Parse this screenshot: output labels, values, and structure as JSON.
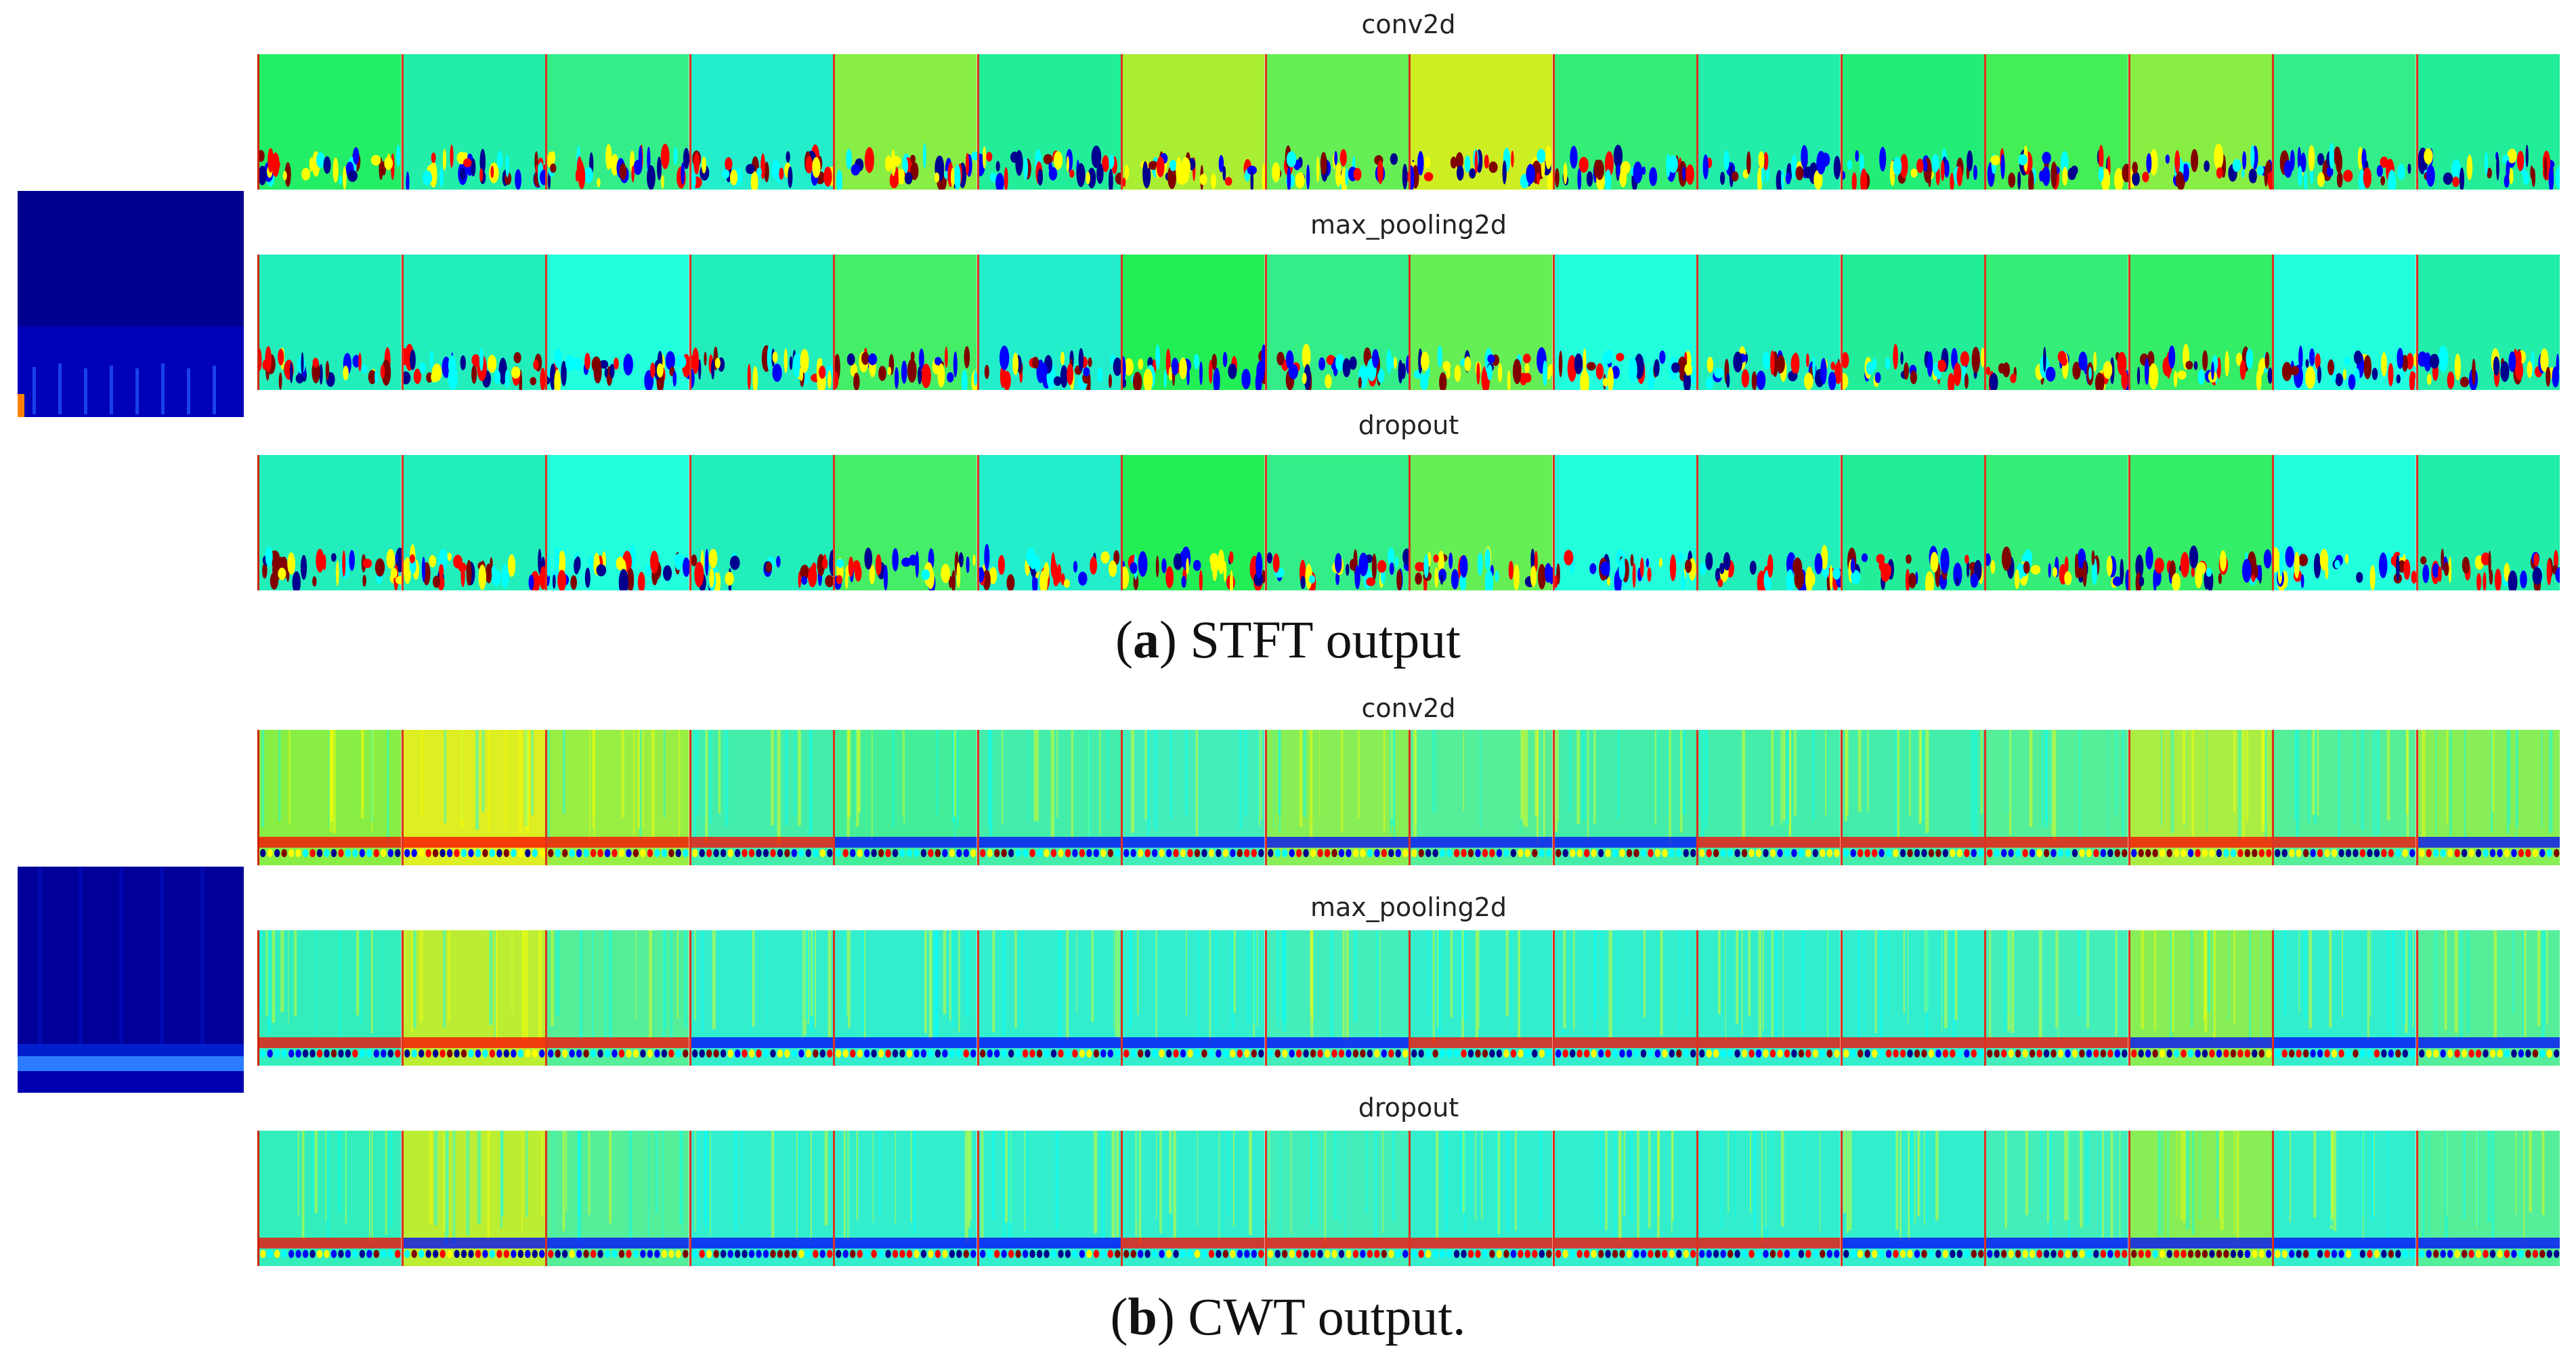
{
  "colors": {
    "jet_dark": "#00008f",
    "jet_blue": "#0000ff",
    "jet_cyan": "#00ffff",
    "jet_green": "#00ff80",
    "jet_yellow": "#ffff00",
    "jet_red": "#ff0000",
    "jet_darkred": "#800000"
  },
  "panel_a": {
    "caption_letter": "a",
    "caption_text": "STFT output",
    "layers": [
      {
        "name": "conv2d",
        "tiles": [
          "#22ee66",
          "#22eeaa",
          "#33ee88",
          "#22eecc",
          "#88ee44",
          "#22ee99",
          "#aaee33",
          "#66ee55",
          "#ccee22",
          "#33ee77",
          "#22eeaa",
          "#22ee77",
          "#44ee55",
          "#88ee44",
          "#33ee88",
          "#22ee99"
        ]
      },
      {
        "name": "max_pooling2d",
        "tiles": [
          "#22eebb",
          "#22eebb",
          "#22ffdd",
          "#22eebb",
          "#44ee66",
          "#22eecc",
          "#22ee55",
          "#33ee88",
          "#66ee55",
          "#22ffdd",
          "#22eebb",
          "#22ee99",
          "#33ee77",
          "#33ee66",
          "#22ffdd",
          "#22eeaa"
        ]
      },
      {
        "name": "dropout",
        "tiles": [
          "#22eebb",
          "#22eebb",
          "#22ffdd",
          "#22eebb",
          "#44ee66",
          "#22eecc",
          "#22ee55",
          "#33ee88",
          "#66ee55",
          "#22ffdd",
          "#22eebb",
          "#22ee99",
          "#33ee77",
          "#33ee66",
          "#22ffdd",
          "#22eeaa"
        ]
      }
    ]
  },
  "panel_b": {
    "caption_letter": "b",
    "caption_text": "CWT output.",
    "layers": [
      {
        "name": "conv2d",
        "tiles": [
          "#88ee44",
          "#ddee22",
          "#99ee44",
          "#44eeaa",
          "#44ee99",
          "#44eeaa",
          "#44eebb",
          "#88ee55",
          "#55ee99",
          "#44eeaa",
          "#44eeaa",
          "#44eeaa",
          "#55ee99",
          "#aaee44",
          "#55ee99",
          "#88ee55"
        ]
      },
      {
        "name": "max_pooling2d",
        "tiles": [
          "#33eebb",
          "#bbee33",
          "#55ee99",
          "#33eecc",
          "#33eecc",
          "#33eecc",
          "#33eecc",
          "#44eebb",
          "#33eecc",
          "#33eecc",
          "#33eecc",
          "#33eecc",
          "#44eebb",
          "#88ee55",
          "#33eecc",
          "#55ee99"
        ]
      },
      {
        "name": "dropout",
        "tiles": [
          "#33eebb",
          "#bbee33",
          "#55ee99",
          "#33eecc",
          "#33eecc",
          "#33eecc",
          "#33eecc",
          "#44eebb",
          "#33eecc",
          "#33eecc",
          "#33eecc",
          "#33eecc",
          "#44eebb",
          "#88ee55",
          "#33eecc",
          "#55ee99"
        ]
      }
    ]
  }
}
